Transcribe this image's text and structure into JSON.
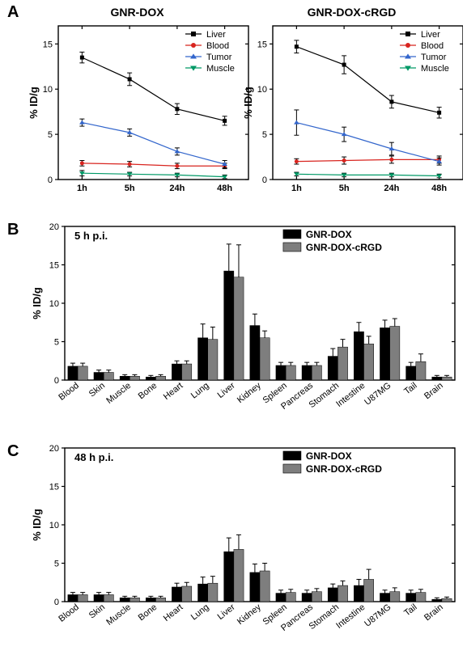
{
  "panelA": {
    "label": "A",
    "label_fontsize": 20,
    "ylabel": "% ID/g",
    "ylim": [
      0,
      17
    ],
    "yticks": [
      0,
      5,
      10,
      15
    ],
    "xlabels": [
      "1h",
      "5h",
      "24h",
      "48h"
    ],
    "markers": [
      "square",
      "circle",
      "triangle-up",
      "triangle-down"
    ],
    "series_names": [
      "Liver",
      "Blood",
      "Tumor",
      "Muscle"
    ],
    "colors": [
      "#000000",
      "#d8241f",
      "#3366cc",
      "#009966"
    ],
    "line_width": 1.2,
    "marker_size": 5,
    "error_cap": 3,
    "background_color": "#ffffff",
    "axis_color": "#000000",
    "charts": [
      {
        "title": "GNR-DOX",
        "title_fontsize": 14,
        "series": {
          "Liver": {
            "y": [
              13.5,
              11.1,
              7.8,
              6.5
            ],
            "err": [
              0.6,
              0.7,
              0.6,
              0.5
            ]
          },
          "Blood": {
            "y": [
              1.8,
              1.7,
              1.5,
              1.5
            ],
            "err": [
              0.3,
              0.3,
              0.3,
              0.3
            ]
          },
          "Tumor": {
            "y": [
              6.3,
              5.2,
              3.1,
              1.7
            ],
            "err": [
              0.4,
              0.4,
              0.4,
              0.4
            ]
          },
          "Muscle": {
            "y": [
              0.7,
              0.6,
              0.5,
              0.3
            ],
            "err": [
              0.3,
              0.2,
              0.2,
              0.2
            ]
          }
        }
      },
      {
        "title": "GNR-DOX-cRGD",
        "title_fontsize": 14,
        "series": {
          "Liver": {
            "y": [
              14.7,
              12.7,
              8.6,
              7.4
            ],
            "err": [
              0.7,
              1.0,
              0.7,
              0.6
            ]
          },
          "Blood": {
            "y": [
              2.0,
              2.1,
              2.2,
              2.2
            ],
            "err": [
              0.3,
              0.4,
              0.4,
              0.4
            ]
          },
          "Tumor": {
            "y": [
              6.3,
              5.0,
              3.4,
              2.0
            ],
            "err": [
              1.4,
              0.8,
              0.7,
              0.4
            ]
          },
          "Muscle": {
            "y": [
              0.6,
              0.5,
              0.5,
              0.4
            ],
            "err": [
              0.2,
              0.2,
              0.2,
              0.2
            ]
          }
        }
      }
    ]
  },
  "panelB": {
    "label": "B",
    "subtitle": "5 h p.i.",
    "ylabel": "% ID/g",
    "ylim": [
      0,
      20
    ],
    "yticks": [
      0,
      5,
      10,
      15,
      20
    ],
    "categories": [
      "Blood",
      "Skin",
      "Muscle",
      "Bone",
      "Heart",
      "Lung",
      "Liver",
      "Kidney",
      "Spleen",
      "Pancreas",
      "Stomach",
      "Intestine",
      "U87MG",
      "Tail",
      "Brain"
    ],
    "series": [
      {
        "name": "GNR-DOX",
        "color": "#000000",
        "y": [
          1.8,
          1.0,
          0.5,
          0.4,
          2.1,
          5.5,
          14.2,
          7.1,
          1.9,
          1.9,
          3.1,
          6.3,
          6.8,
          1.8,
          0.4
        ],
        "err": [
          0.4,
          0.3,
          0.2,
          0.2,
          0.4,
          1.8,
          3.5,
          1.5,
          0.4,
          0.4,
          1.0,
          1.2,
          1.0,
          0.5,
          0.2
        ]
      },
      {
        "name": "GNR-DOX-cRGD",
        "color": "#7e7e7e",
        "y": [
          1.8,
          1.0,
          0.5,
          0.5,
          2.1,
          5.3,
          13.4,
          5.5,
          1.9,
          1.9,
          4.3,
          4.7,
          7.0,
          2.4,
          0.4
        ],
        "err": [
          0.4,
          0.3,
          0.2,
          0.2,
          0.4,
          1.6,
          4.2,
          0.9,
          0.4,
          0.4,
          1.0,
          1.0,
          1.0,
          1.0,
          0.2
        ]
      }
    ],
    "bar_width": 0.38,
    "background_color": "#ffffff",
    "axis_color": "#000000"
  },
  "panelC": {
    "label": "C",
    "subtitle": "48 h p.i.",
    "ylabel": "% ID/g",
    "ylim": [
      0,
      20
    ],
    "yticks": [
      0,
      5,
      10,
      15,
      20
    ],
    "categories": [
      "Blood",
      "Skin",
      "Muscle",
      "Bone",
      "Heart",
      "Lung",
      "Liver",
      "Kidney",
      "Spleen",
      "Pancreas",
      "Stomach",
      "Intestine",
      "U87MG",
      "Tail",
      "Brain"
    ],
    "series": [
      {
        "name": "GNR-DOX",
        "color": "#000000",
        "y": [
          0.9,
          0.9,
          0.5,
          0.5,
          1.9,
          2.3,
          6.5,
          3.8,
          1.1,
          1.1,
          1.8,
          2.1,
          1.1,
          1.1,
          0.3
        ],
        "err": [
          0.3,
          0.3,
          0.2,
          0.2,
          0.5,
          0.9,
          1.8,
          1.1,
          0.4,
          0.4,
          0.5,
          0.8,
          0.4,
          0.4,
          0.2
        ]
      },
      {
        "name": "GNR-DOX-cRGD",
        "color": "#7e7e7e",
        "y": [
          0.9,
          0.9,
          0.5,
          0.5,
          2.0,
          2.4,
          6.8,
          4.0,
          1.2,
          1.3,
          2.1,
          2.9,
          1.3,
          1.2,
          0.4
        ],
        "err": [
          0.3,
          0.3,
          0.2,
          0.2,
          0.5,
          0.9,
          1.9,
          1.0,
          0.4,
          0.4,
          0.6,
          1.3,
          0.5,
          0.4,
          0.2
        ]
      }
    ],
    "bar_width": 0.38,
    "background_color": "#ffffff",
    "axis_color": "#000000"
  }
}
